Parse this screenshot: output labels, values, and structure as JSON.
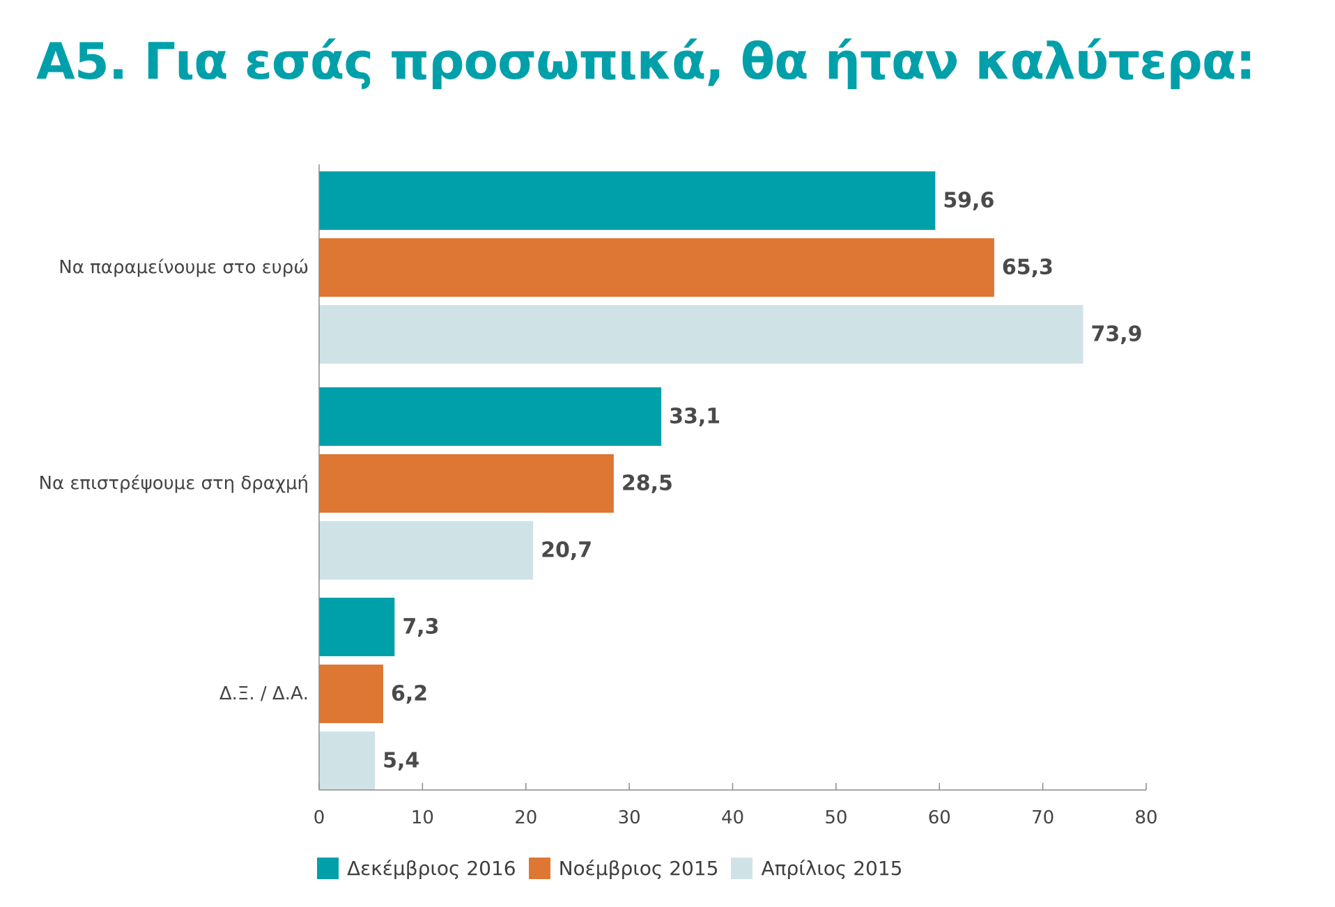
{
  "chart_data": {
    "type": "bar",
    "orientation": "horizontal",
    "title": "Α5. Για εσάς προσωπικά, θα ήταν καλύτερα:",
    "categories": [
      "Να παραμείνουμε στο ευρώ",
      "Να επιστρέψουμε στη δραχμή",
      "Δ.Ξ. / Δ.Α."
    ],
    "series": [
      {
        "name": "Δεκέμβριος 2016",
        "color": "#00a0aa",
        "values": [
          59.6,
          33.1,
          7.3
        ],
        "labels": [
          "59,6",
          "33,1",
          "7,3"
        ]
      },
      {
        "name": "Νοέμβριος 2015",
        "color": "#dd7733",
        "values": [
          65.3,
          28.5,
          6.2
        ],
        "labels": [
          "65,3",
          "28,5",
          "6,2"
        ]
      },
      {
        "name": "Απρίλιος 2015",
        "color": "#cfe3e6",
        "values": [
          73.9,
          20.7,
          5.4
        ],
        "labels": [
          "73,9",
          "20,7",
          "5,4"
        ]
      }
    ],
    "xlim": [
      0,
      80
    ],
    "xticks": [
      0,
      10,
      20,
      30,
      40,
      50,
      60,
      70,
      80
    ],
    "xlabel": "",
    "ylabel": "",
    "legend_position": "bottom-left",
    "title_color": "#00a0aa"
  }
}
